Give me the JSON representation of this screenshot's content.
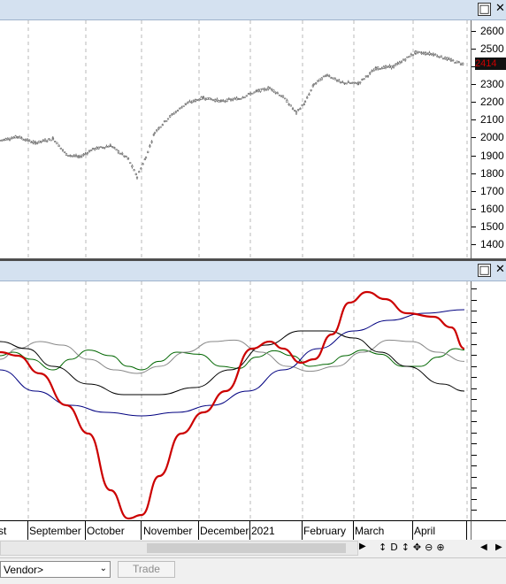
{
  "windows": {
    "maximize_icon": "□",
    "close_icon": "✕"
  },
  "price_axis": {
    "labels": [
      "2600",
      "2500",
      "2400",
      "2300",
      "2200",
      "2100",
      "2000",
      "1900",
      "1800",
      "1700",
      "1600",
      "1500",
      "1400"
    ],
    "last_price": "2414",
    "last_price_color": "#cc0000"
  },
  "time_axis": {
    "months": [
      "st",
      "September",
      "October",
      "November",
      "December",
      "2021",
      "February",
      "March",
      "April"
    ]
  },
  "chart_data": [
    {
      "type": "line",
      "title": "",
      "ylim": [
        1320,
        2660
      ],
      "series": [
        {
          "values": [
            [
              0,
              1985
            ],
            [
              20,
              2005
            ],
            [
              40,
              1970
            ],
            [
              60,
              1995
            ],
            [
              75,
              1905
            ],
            [
              90,
              1890
            ],
            [
              105,
              1935
            ],
            [
              125,
              1955
            ],
            [
              145,
              1880
            ],
            [
              155,
              1780
            ],
            [
              165,
              1890
            ],
            [
              175,
              2030
            ],
            [
              190,
              2110
            ],
            [
              210,
              2190
            ],
            [
              230,
              2225
            ],
            [
              250,
              2205
            ],
            [
              270,
              2220
            ],
            [
              290,
              2260
            ],
            [
              305,
              2280
            ],
            [
              320,
              2230
            ],
            [
              335,
              2140
            ],
            [
              345,
              2200
            ],
            [
              355,
              2300
            ],
            [
              370,
              2355
            ],
            [
              385,
              2310
            ],
            [
              405,
              2305
            ],
            [
              425,
              2390
            ],
            [
              445,
              2400
            ],
            [
              470,
              2480
            ],
            [
              490,
              2470
            ],
            [
              510,
              2435
            ],
            [
              525,
              2414
            ]
          ]
        }
      ]
    },
    {
      "type": "line",
      "title": "",
      "series": [
        {
          "color": "#cc0000",
          "values": [
            [
              0,
              0.65
            ],
            [
              20,
              0.6
            ],
            [
              45,
              0.35
            ],
            [
              75,
              -0.1
            ],
            [
              100,
              -0.5
            ],
            [
              125,
              -1.3
            ],
            [
              145,
              -1.7
            ],
            [
              160,
              -1.65
            ],
            [
              180,
              -1.1
            ],
            [
              205,
              -0.5
            ],
            [
              230,
              -0.2
            ],
            [
              255,
              0.1
            ],
            [
              285,
              0.7
            ],
            [
              305,
              0.8
            ],
            [
              320,
              0.7
            ],
            [
              340,
              0.5
            ],
            [
              355,
              0.55
            ],
            [
              375,
              0.9
            ],
            [
              395,
              1.35
            ],
            [
              415,
              1.5
            ],
            [
              435,
              1.4
            ],
            [
              460,
              1.2
            ],
            [
              490,
              1.15
            ],
            [
              510,
              1.0
            ],
            [
              525,
              0.7
            ]
          ]
        },
        {
          "color": "#000080",
          "values": [
            [
              0,
              0.4
            ],
            [
              40,
              0.1
            ],
            [
              80,
              -0.1
            ],
            [
              120,
              -0.2
            ],
            [
              160,
              -0.25
            ],
            [
              200,
              -0.2
            ],
            [
              240,
              -0.1
            ],
            [
              280,
              0.1
            ],
            [
              320,
              0.4
            ],
            [
              360,
              0.7
            ],
            [
              400,
              0.95
            ],
            [
              440,
              1.1
            ],
            [
              480,
              1.2
            ],
            [
              525,
              1.25
            ]
          ]
        },
        {
          "color": "#000000",
          "values": [
            [
              0,
              0.8
            ],
            [
              30,
              0.7
            ],
            [
              60,
              0.45
            ],
            [
              100,
              0.2
            ],
            [
              140,
              0.05
            ],
            [
              180,
              0.05
            ],
            [
              220,
              0.15
            ],
            [
              260,
              0.4
            ],
            [
              300,
              0.75
            ],
            [
              340,
              0.95
            ],
            [
              370,
              0.95
            ],
            [
              400,
              0.85
            ],
            [
              430,
              0.65
            ],
            [
              460,
              0.45
            ],
            [
              500,
              0.2
            ],
            [
              525,
              0.1
            ]
          ]
        },
        {
          "color": "#888888",
          "values": [
            [
              0,
              0.55
            ],
            [
              20,
              0.7
            ],
            [
              45,
              0.8
            ],
            [
              70,
              0.75
            ],
            [
              100,
              0.55
            ],
            [
              130,
              0.4
            ],
            [
              155,
              0.35
            ],
            [
              180,
              0.45
            ],
            [
              210,
              0.65
            ],
            [
              240,
              0.8
            ],
            [
              265,
              0.82
            ],
            [
              295,
              0.65
            ],
            [
              325,
              0.45
            ],
            [
              350,
              0.38
            ],
            [
              380,
              0.45
            ],
            [
              410,
              0.65
            ],
            [
              440,
              0.82
            ],
            [
              465,
              0.8
            ],
            [
              495,
              0.65
            ],
            [
              525,
              0.52
            ]
          ]
        },
        {
          "color": "#006600",
          "values": [
            [
              0,
              0.6
            ],
            [
              15,
              0.65
            ],
            [
              35,
              0.55
            ],
            [
              60,
              0.4
            ],
            [
              80,
              0.55
            ],
            [
              100,
              0.68
            ],
            [
              125,
              0.6
            ],
            [
              145,
              0.45
            ],
            [
              160,
              0.4
            ],
            [
              180,
              0.52
            ],
            [
              200,
              0.65
            ],
            [
              225,
              0.62
            ],
            [
              250,
              0.45
            ],
            [
              270,
              0.42
            ],
            [
              290,
              0.58
            ],
            [
              310,
              0.67
            ],
            [
              330,
              0.6
            ],
            [
              350,
              0.45
            ],
            [
              370,
              0.48
            ],
            [
              390,
              0.6
            ],
            [
              410,
              0.68
            ],
            [
              430,
              0.62
            ],
            [
              455,
              0.45
            ],
            [
              475,
              0.45
            ],
            [
              495,
              0.58
            ],
            [
              515,
              0.7
            ],
            [
              525,
              0.68
            ]
          ]
        }
      ]
    }
  ],
  "bottom_bar": {
    "vendor_select": "Vendor>",
    "trade_button": "Trade"
  }
}
